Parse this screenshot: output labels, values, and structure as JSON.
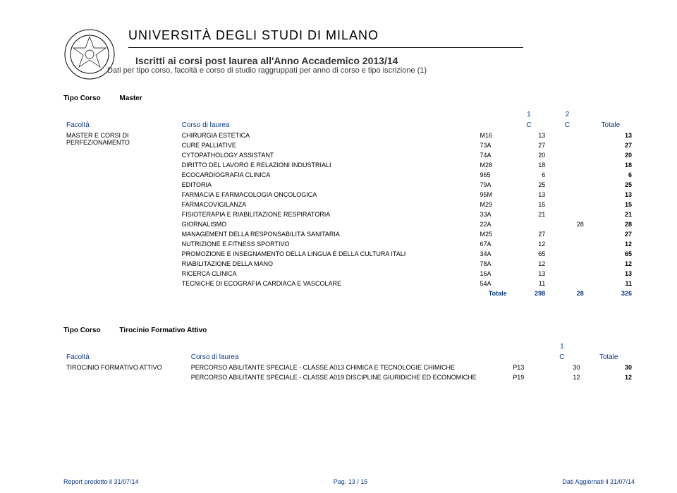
{
  "header": {
    "university": "UNIVERSITÀ DEGLI STUDI DI MILANO",
    "title": "Iscritti ai corsi post laurea all'Anno Accademico 2013/14",
    "subtitle": "Dati per tipo corso, facoltà e corso di studio raggruppati per anno di corso e tipo iscrizione (1)"
  },
  "section1": {
    "tipo_label": "Tipo Corso",
    "tipo_value": "Master",
    "col_year_1": "1",
    "col_year_2": "2",
    "h_facolta": "Facoltà",
    "h_corso": "Corso di laurea",
    "h_c": "C",
    "h_totale": "Totale",
    "faculty": "MASTER E CORSI DI PERFEZIONAMENTO",
    "rows": [
      {
        "course": "CHIRURGIA ESTETICA",
        "code": "M16",
        "c1": "13",
        "c2": "",
        "tot": "13"
      },
      {
        "course": "CURE PALLIATIVE",
        "code": "73A",
        "c1": "27",
        "c2": "",
        "tot": "27"
      },
      {
        "course": "CYTOPATHOLOGY ASSISTANT",
        "code": "74A",
        "c1": "20",
        "c2": "",
        "tot": "20"
      },
      {
        "course": "DIRITTO DEL LAVORO E RELAZIONI INDUSTRIALI",
        "code": "M28",
        "c1": "18",
        "c2": "",
        "tot": "18"
      },
      {
        "course": "ECOCARDIOGRAFIA CLINICA",
        "code": "965",
        "c1": "6",
        "c2": "",
        "tot": "6"
      },
      {
        "course": "EDITORIA",
        "code": "79A",
        "c1": "25",
        "c2": "",
        "tot": "25"
      },
      {
        "course": "FARMACIA E FARMACOLOGIA ONCOLOGICA",
        "code": "95M",
        "c1": "13",
        "c2": "",
        "tot": "13"
      },
      {
        "course": "FARMACOVIGILANZA",
        "code": "M29",
        "c1": "15",
        "c2": "",
        "tot": "15"
      },
      {
        "course": "FISIOTERAPIA E RIABILITAZIONE RESPIRATORIA",
        "code": "33A",
        "c1": "21",
        "c2": "",
        "tot": "21"
      },
      {
        "course": "GIORNALISMO",
        "code": "22A",
        "c1": "",
        "c2": "28",
        "tot": "28"
      },
      {
        "course": "MANAGEMENT DELLA RESPONSABILITÀ SANITARIA",
        "code": "M25",
        "c1": "27",
        "c2": "",
        "tot": "27"
      },
      {
        "course": "NUTRIZIONE E FITNESS SPORTIVO",
        "code": "67A",
        "c1": "12",
        "c2": "",
        "tot": "12"
      },
      {
        "course": "PROMOZIONE E INSEGNAMENTO DELLA LINGUA E DELLA CULTURA ITALI",
        "code": "34A",
        "c1": "65",
        "c2": "",
        "tot": "65"
      },
      {
        "course": "RIABILITAZIONE DELLA MANO",
        "code": "78A",
        "c1": "12",
        "c2": "",
        "tot": "12"
      },
      {
        "course": "RICERCA CLINICA",
        "code": "16A",
        "c1": "13",
        "c2": "",
        "tot": "13"
      },
      {
        "course": "TECNICHE DI ECOGRAFIA CARDIACA E VASCOLARE",
        "code": "54A",
        "c1": "11",
        "c2": "",
        "tot": "11"
      }
    ],
    "totale_label": "Totale",
    "totale_c1": "298",
    "totale_c2": "28",
    "totale_tot": "326"
  },
  "section2": {
    "tipo_label": "Tipo Corso",
    "tipo_value": "Tirocinio Formativo Attivo",
    "col_year_1": "1",
    "h_facolta": "Facoltà",
    "h_corso": "Corso di laurea",
    "h_c": "C",
    "h_totale": "Totale",
    "faculty": "TIROCINIO FORMATIVO ATTIVO",
    "rows": [
      {
        "course": "PERCORSO ABILITANTE SPECIALE - CLASSE A013 CHIMICA E TECNOLOGIE CHIMICHE",
        "code": "P13",
        "c1": "30",
        "tot": "30"
      },
      {
        "course": "PERCORSO ABILITANTE SPECIALE - CLASSE A019 DISCIPLINE GIURIDICHE ED ECONOMICHE",
        "code": "P19",
        "c1": "12",
        "tot": "12"
      }
    ]
  },
  "footer": {
    "left": "Report prodotto il 31/07/14",
    "center": "Pag. 13 / 15",
    "right": "Dati Aggiornati il 31/07/14"
  }
}
